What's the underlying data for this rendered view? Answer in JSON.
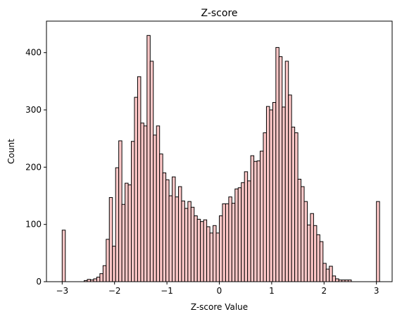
{
  "chart_data": {
    "type": "bar",
    "title": "Z-score",
    "xlabel": "Z-score Value",
    "ylabel": "Count",
    "xlim": [
      -3.3,
      3.3
    ],
    "ylim": [
      0,
      455
    ],
    "xticks": [
      -3,
      -2,
      -1,
      0,
      1,
      2,
      3
    ],
    "xtick_labels": [
      "−3",
      "−2",
      "−1",
      "0",
      "1",
      "2",
      "3"
    ],
    "yticks": [
      0,
      100,
      200,
      300,
      400
    ],
    "ytick_labels": [
      "0",
      "100",
      "200",
      "300",
      "400"
    ],
    "grid": false,
    "bar_fill": "#ffc8c8",
    "bar_edge": "#000000",
    "bin_start": -3,
    "bin_width": 0.06,
    "values": [
      90,
      0,
      0,
      0,
      0,
      0,
      0,
      2,
      4,
      3,
      5,
      8,
      14,
      28,
      74,
      147,
      62,
      199,
      246,
      135,
      172,
      169,
      245,
      322,
      358,
      277,
      272,
      430,
      385,
      256,
      272,
      223,
      190,
      178,
      150,
      183,
      148,
      166,
      141,
      128,
      140,
      130,
      115,
      109,
      105,
      108,
      96,
      85,
      98,
      85,
      115,
      136,
      136,
      148,
      137,
      162,
      164,
      173,
      192,
      176,
      220,
      210,
      211,
      228,
      260,
      306,
      300,
      313,
      409,
      393,
      305,
      385,
      326,
      270,
      260,
      179,
      166,
      140,
      99,
      119,
      98,
      82,
      70,
      32,
      22,
      27,
      10,
      5,
      3,
      3,
      3,
      3,
      0,
      0,
      0,
      0,
      0,
      0,
      0,
      0,
      140
    ]
  }
}
